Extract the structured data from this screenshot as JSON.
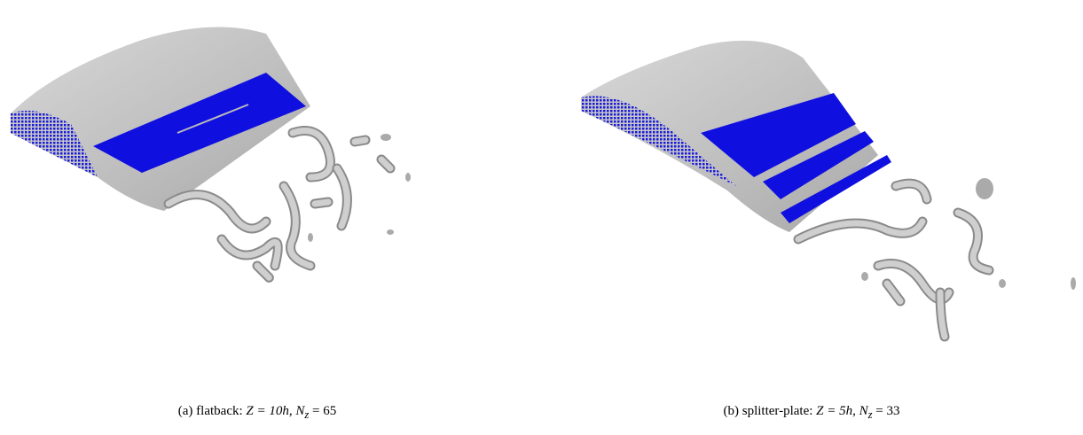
{
  "figure": {
    "panels": [
      {
        "label": "(a)",
        "name": "flatback:",
        "math": "Z = 10h, N",
        "sub": "z",
        "rest": " = 65"
      },
      {
        "label": "(b)",
        "name": "splitter-plate:",
        "math": "Z = 5h, N",
        "sub": "z",
        "rest": " = 33"
      }
    ]
  }
}
